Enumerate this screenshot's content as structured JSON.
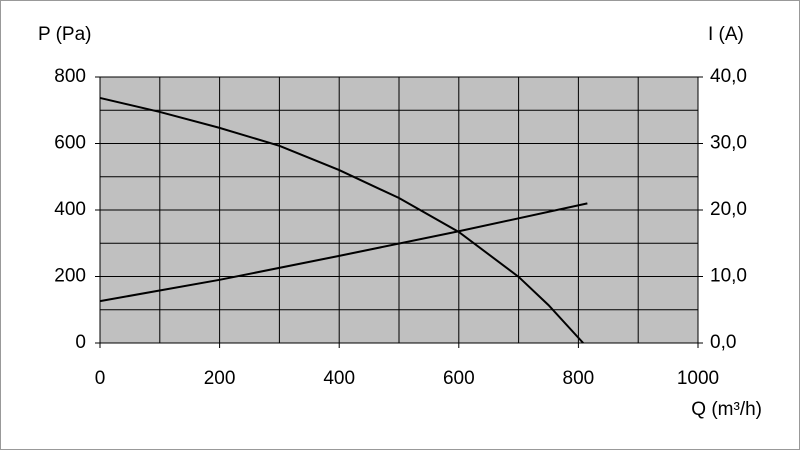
{
  "chart_data": {
    "type": "line",
    "ylabel": "P (Pa)",
    "y2label": "I (A)",
    "xlabel": "Q (m³/h)",
    "xlim": [
      0,
      1000
    ],
    "xticks": [
      0,
      200,
      400,
      600,
      800,
      1000
    ],
    "xminorticks": [
      100,
      300,
      500,
      700,
      900
    ],
    "ylim": [
      0,
      800
    ],
    "yticks": [
      0,
      200,
      400,
      600,
      800
    ],
    "yminorticks": [
      100,
      300,
      500,
      700
    ],
    "y2lim": [
      0,
      40
    ],
    "y2ticks": [
      {
        "value": 0,
        "label": "0,0"
      },
      {
        "value": 10,
        "label": "10,0"
      },
      {
        "value": 20,
        "label": "20,0"
      },
      {
        "value": 30,
        "label": "30,0"
      },
      {
        "value": 40,
        "label": "40,0"
      }
    ],
    "grid": true,
    "series": [
      {
        "color": "#000000",
        "axis": "y",
        "x": [
          0,
          100,
          200,
          300,
          400,
          500,
          600,
          700,
          750,
          808
        ],
        "values": [
          737,
          695,
          647,
          593,
          520,
          436,
          334,
          199,
          114,
          0
        ]
      },
      {
        "color": "#000000",
        "axis": "y2",
        "x": [
          0,
          200,
          400,
          600,
          815
        ],
        "values": [
          6.3,
          9.5,
          13.1,
          16.8,
          21.0
        ]
      }
    ]
  }
}
